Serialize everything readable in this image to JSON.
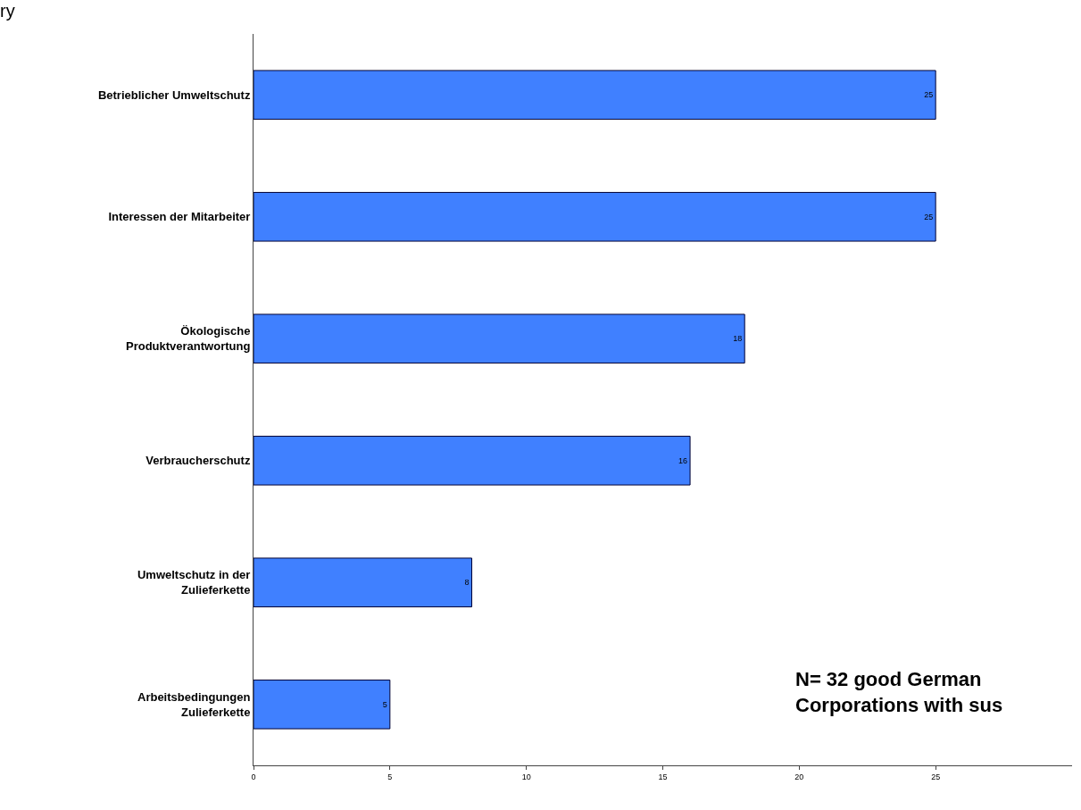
{
  "chart_data": {
    "type": "bar",
    "orientation": "horizontal",
    "title": "ry",
    "categories": [
      "Betrieblicher Umweltschutz",
      "Interessen der Mitarbeiter",
      "Ökologische\nProduktverantwortung",
      "Verbraucherschutz",
      "Umweltschutz in der\nZulieferkette",
      "Arbeitsbedingungen\nZulieferkette"
    ],
    "values": [
      25,
      25,
      18,
      16,
      8,
      5
    ],
    "color": "#4080ff",
    "data_labels": true,
    "xlim": [
      0,
      30
    ],
    "xticks": [
      0,
      5,
      10,
      15,
      20,
      25
    ],
    "legend": false,
    "annotations": [
      "N= 32 good German\nCorporations with sus"
    ]
  }
}
